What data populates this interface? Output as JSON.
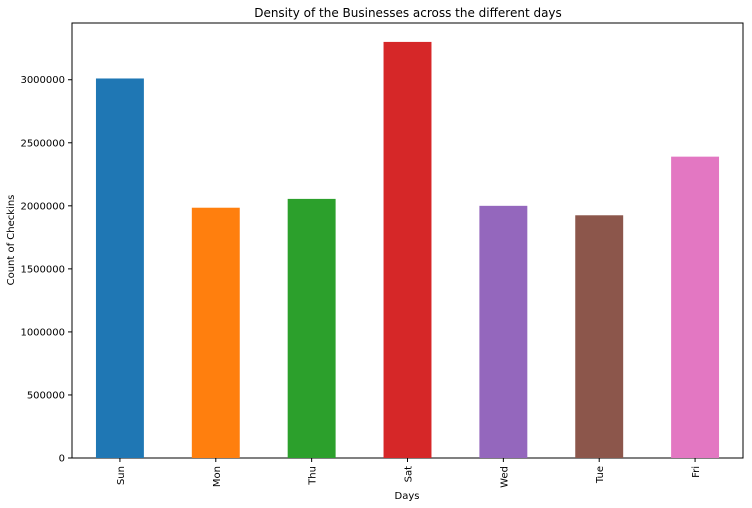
{
  "chart_data": {
    "type": "bar",
    "title": "Density of the Businesses across the different days",
    "xlabel": "Days",
    "ylabel": "Count of Checkins",
    "categories": [
      "Sun",
      "Mon",
      "Thu",
      "Sat",
      "Wed",
      "Tue",
      "Fri"
    ],
    "values": [
      3010000,
      1985000,
      2055000,
      3300000,
      2000000,
      1925000,
      2390000
    ],
    "colors": [
      "#1f77b4",
      "#ff7f0e",
      "#2ca02c",
      "#d62728",
      "#9467bd",
      "#8c564b",
      "#e377c2"
    ],
    "ylim": [
      0,
      3450000
    ],
    "yticks": [
      0,
      500000,
      1000000,
      1500000,
      2000000,
      2500000,
      3000000
    ],
    "grid": false,
    "legend": "none"
  }
}
